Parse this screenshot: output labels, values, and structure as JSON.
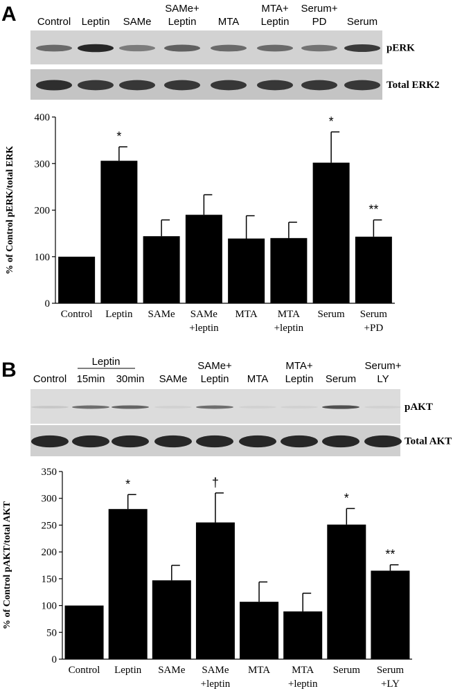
{
  "panels": [
    {
      "letter": "A",
      "blot": {
        "lanes": [
          [
            "Control"
          ],
          [
            "Leptin"
          ],
          [
            "SAMe"
          ],
          [
            "SAMe+",
            "Leptin"
          ],
          [
            "MTA"
          ],
          [
            "MTA+",
            "Leptin"
          ],
          [
            "Serum+",
            "PD"
          ],
          [
            "Serum"
          ]
        ],
        "bands": [
          {
            "label": "pERK",
            "intensity": [
              0.55,
              0.9,
              0.45,
              0.6,
              0.55,
              0.55,
              0.5,
              0.8
            ]
          },
          {
            "label": "Total ERK2",
            "intensity": [
              0.85,
              0.8,
              0.8,
              0.8,
              0.8,
              0.8,
              0.8,
              0.8
            ]
          }
        ]
      },
      "chart_data": {
        "type": "bar",
        "categories": [
          [
            "Control"
          ],
          [
            "Leptin"
          ],
          [
            "SAMe"
          ],
          [
            "SAMe",
            "+leptin"
          ],
          [
            "MTA"
          ],
          [
            "MTA",
            "+leptin"
          ],
          [
            "Serum"
          ],
          [
            "Serum",
            "+PD"
          ]
        ],
        "values": [
          100,
          306,
          144,
          190,
          139,
          140,
          302,
          143
        ],
        "errors": [
          0,
          30,
          35,
          43,
          49,
          34,
          66,
          36
        ],
        "annotations": [
          "",
          "*",
          "",
          "",
          "",
          "",
          "*",
          "**"
        ],
        "ylabel": "% of Control pERK/total ERK",
        "ylim": [
          0,
          400
        ],
        "yticks": [
          0,
          100,
          200,
          300,
          400
        ]
      }
    },
    {
      "letter": "B",
      "blot": {
        "group_label": "Leptin",
        "lanes": [
          [
            "Control"
          ],
          [
            "15min"
          ],
          [
            "30min"
          ],
          [
            "SAMe"
          ],
          [
            "SAMe+",
            "Leptin"
          ],
          [
            "MTA"
          ],
          [
            "MTA+",
            "Leptin"
          ],
          [
            "Serum"
          ],
          [
            "Serum+",
            "LY"
          ]
        ],
        "bands": [
          {
            "label": "pAKT",
            "intensity": [
              0.1,
              0.55,
              0.6,
              0.05,
              0.55,
              0.05,
              0.05,
              0.7,
              0.05
            ]
          },
          {
            "label": "Total AKT",
            "intensity": [
              0.9,
              0.9,
              0.9,
              0.9,
              0.9,
              0.9,
              0.9,
              0.9,
              0.9
            ]
          }
        ]
      },
      "chart_data": {
        "type": "bar",
        "categories": [
          [
            "Control"
          ],
          [
            "Leptin"
          ],
          [
            "SAMe"
          ],
          [
            "SAMe",
            "+leptin"
          ],
          [
            "MTA"
          ],
          [
            "MTA",
            "+leptin"
          ],
          [
            "Serum"
          ],
          [
            "Serum",
            "+LY"
          ]
        ],
        "values": [
          100,
          280,
          147,
          255,
          107,
          89,
          251,
          165
        ],
        "errors": [
          0,
          27,
          28,
          55,
          37,
          34,
          30,
          11
        ],
        "annotations": [
          "",
          "*",
          "",
          "†",
          "",
          "",
          "*",
          "**"
        ],
        "ylabel": "% of Control pAKT/total AKT",
        "ylim": [
          0,
          350
        ],
        "yticks": [
          0,
          50,
          100,
          150,
          200,
          250,
          300,
          350
        ]
      }
    }
  ]
}
